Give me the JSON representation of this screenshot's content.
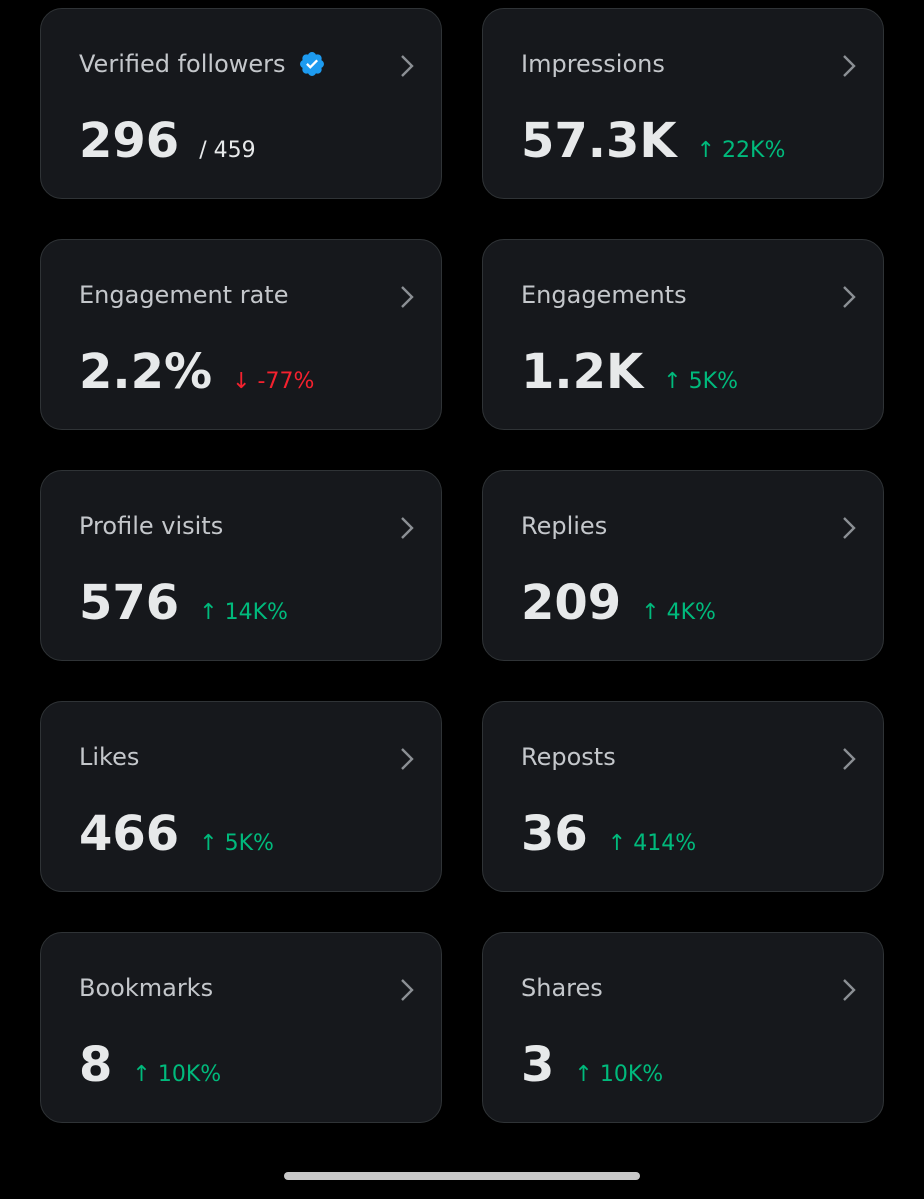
{
  "cards": [
    {
      "label": "Verified followers",
      "value": "296",
      "total": "/ 459",
      "verified": true
    },
    {
      "label": "Impressions",
      "value": "57.3K",
      "change": "↑ 22K%",
      "change_color": "#00ba7c"
    },
    {
      "label": "Engagement rate",
      "value": "2.2%",
      "change": "↓ -77%",
      "change_color": "#f4212e"
    },
    {
      "label": "Engagements",
      "value": "1.2K",
      "change": "↑ 5K%",
      "change_color": "#00ba7c"
    },
    {
      "label": "Profile visits",
      "value": "576",
      "change": "↑ 14K%",
      "change_color": "#00ba7c"
    },
    {
      "label": "Replies",
      "value": "209",
      "change": "↑ 4K%",
      "change_color": "#00ba7c"
    },
    {
      "label": "Likes",
      "value": "466",
      "change": "↑ 5K%",
      "change_color": "#00ba7c"
    },
    {
      "label": "Reposts",
      "value": "36",
      "change": "↑ 414%",
      "change_color": "#00ba7c"
    },
    {
      "label": "Bookmarks",
      "value": "8",
      "change": "↑ 10K%",
      "change_color": "#00ba7c"
    },
    {
      "label": "Shares",
      "value": "3",
      "change": "↑ 10K%",
      "change_color": "#00ba7c"
    }
  ]
}
